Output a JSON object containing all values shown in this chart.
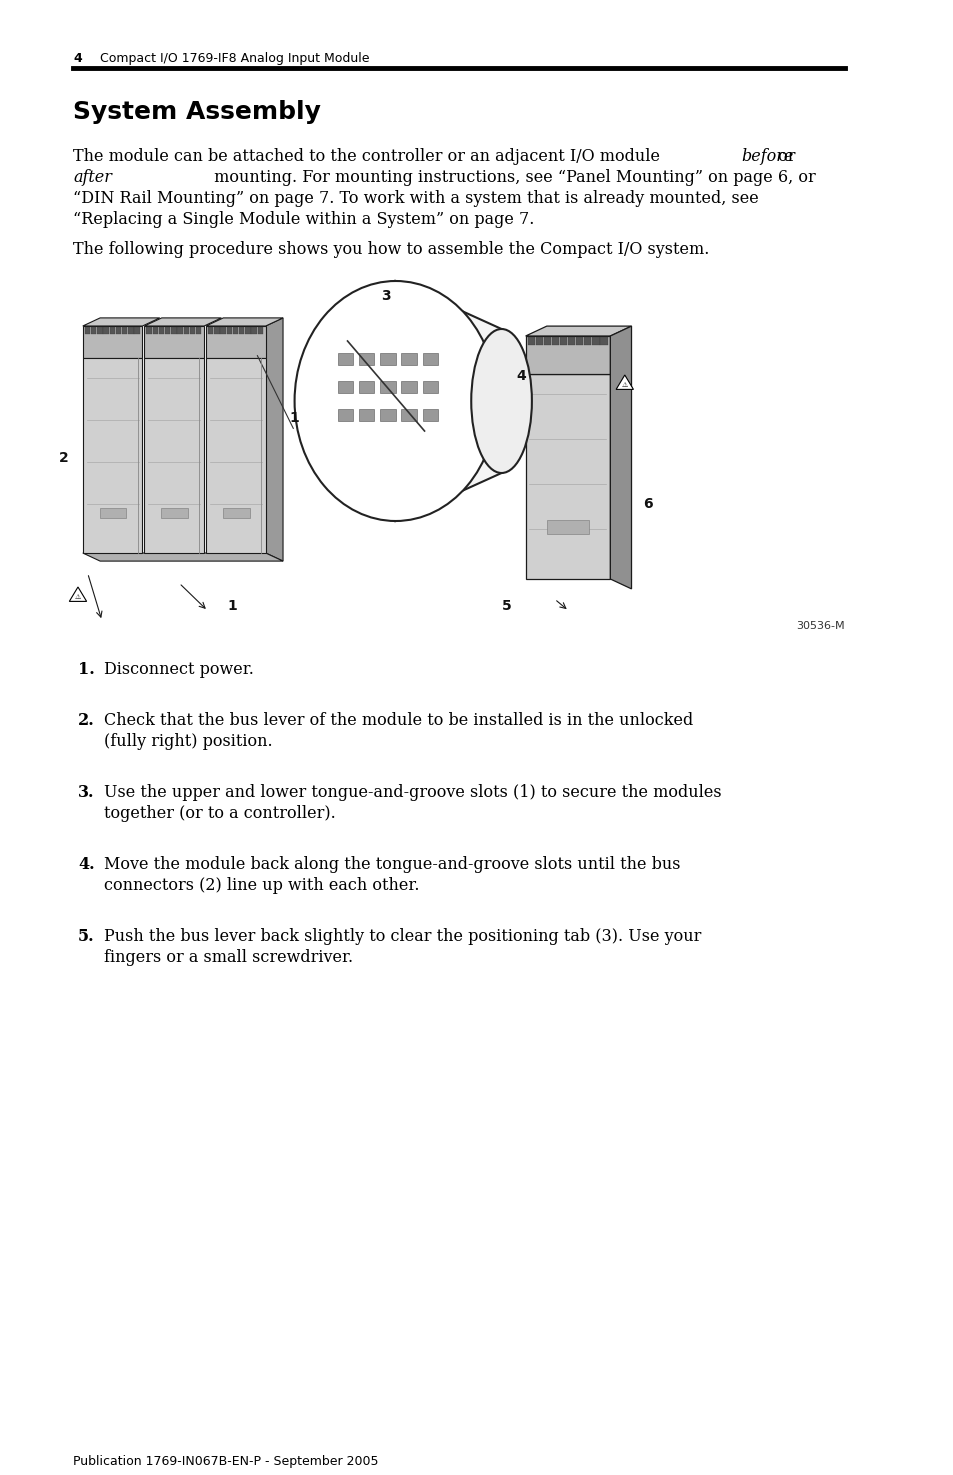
{
  "page_num": "4",
  "header_text": "Compact I/O 1769-IF8 Analog Input Module",
  "section_title": "System Assembly",
  "para1_line1_normal": "The module can be attached to the controller or an adjacent I/O module ",
  "para1_line1_italic": "before",
  "para1_line1_end": " or",
  "para1_line2_italic": "after",
  "para1_line2_normal": " mounting. For mounting instructions, see “Panel Mounting” on page 6, or",
  "para1_line3": "“DIN Rail Mounting” on page 7. To work with a system that is already mounted, see",
  "para1_line4": "“Replacing a Single Module within a System” on page 7.",
  "paragraph2": "The following procedure shows you how to assemble the Compact I/O system.",
  "diagram_note": "30536-M",
  "steps": [
    {
      "num": "1.",
      "text": "Disconnect power."
    },
    {
      "num": "2.",
      "text": "Check that the bus lever of the module to be installed is in the unlocked\n(fully right) position."
    },
    {
      "num": "3.",
      "text": "Use the upper and lower tongue-and-groove slots (1) to secure the modules\ntogether (or to a controller)."
    },
    {
      "num": "4.",
      "text": "Move the module back along the tongue-and-groove slots until the bus\nconnectors (2) line up with each other."
    },
    {
      "num": "5.",
      "text": "Push the bus lever back slightly to clear the positioning tab (3). Use your\nfingers or a small screwdriver."
    }
  ],
  "footer_text": "Publication 1769-IN067B-EN-P - September 2005",
  "bg_color": "#ffffff",
  "text_color": "#000000",
  "header_line_color": "#000000"
}
